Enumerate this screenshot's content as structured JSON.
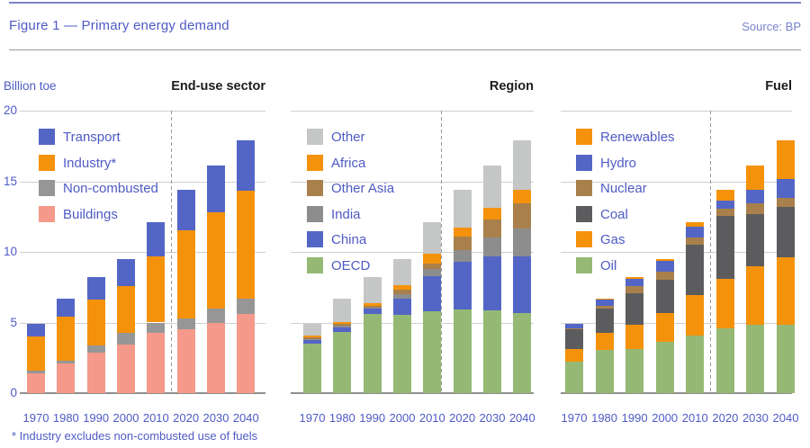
{
  "header": {
    "title": "Figure 1 — Primary energy demand",
    "source": "Source: BP"
  },
  "y_axis": {
    "unit_label": "Billion toe",
    "ticks": [
      0,
      5,
      10,
      15,
      20
    ],
    "max": 20
  },
  "years": [
    "1970",
    "1980",
    "1990",
    "2000",
    "2010",
    "2020",
    "2030",
    "2040"
  ],
  "footnote": "* Industry excludes non-combusted use of fuels",
  "colors": {
    "accent_text_blue": "#4e5bc4",
    "bar_blue": "#5366c6",
    "bar_orange": "#f5920b",
    "bar_salmon": "#f5998a",
    "bar_gray": "#969696",
    "bar_dark_gray": "#8d8d8d",
    "bar_light_gray": "#c5c6c6",
    "bar_brown": "#a9804c",
    "bar_coal": "#5c5c5f",
    "bar_green": "#95b975",
    "gridline": "#cfcfcf",
    "baseline": "#8e8e8e"
  },
  "chart_data": [
    {
      "type": "bar",
      "stacked": true,
      "title": "End-use sector",
      "ylabel": "Billion toe",
      "ylim": [
        0,
        20
      ],
      "grid": true,
      "legend_position": "upper-left-inside",
      "forecast_divider_between": [
        "2010",
        "2020"
      ],
      "categories": [
        "1970",
        "1980",
        "1990",
        "2000",
        "2010",
        "2020",
        "2030",
        "2040"
      ],
      "series": [
        {
          "name": "Transport",
          "color": "#5366c6",
          "values": [
            0.9,
            1.3,
            1.6,
            1.9,
            2.4,
            2.9,
            3.3,
            3.6
          ]
        },
        {
          "name": "Industry*",
          "color": "#f5920b",
          "values": [
            2.4,
            3.1,
            3.2,
            3.35,
            4.7,
            6.2,
            6.8,
            7.6
          ]
        },
        {
          "name": "Non-combusted",
          "color": "#969696",
          "values": [
            0.2,
            0.2,
            0.55,
            0.8,
            0.75,
            0.8,
            1.05,
            1.1
          ]
        },
        {
          "name": "Buildings",
          "color": "#f5998a",
          "values": [
            1.4,
            2.1,
            2.85,
            3.45,
            4.25,
            4.5,
            4.95,
            5.6
          ]
        }
      ]
    },
    {
      "type": "bar",
      "stacked": true,
      "title": "Region",
      "ylim": [
        0,
        20
      ],
      "grid": true,
      "legend_position": "upper-left-inside",
      "forecast_divider_between": [
        "2010",
        "2020"
      ],
      "categories": [
        "1970",
        "1980",
        "1990",
        "2000",
        "2010",
        "2020",
        "2030",
        "2040"
      ],
      "series": [
        {
          "name": "Other",
          "color": "#c5c6c6",
          "values": [
            0.85,
            1.65,
            1.8,
            1.85,
            2.25,
            2.65,
            3.0,
            3.5
          ]
        },
        {
          "name": "Africa",
          "color": "#f5920b",
          "values": [
            0.1,
            0.15,
            0.25,
            0.35,
            0.65,
            0.65,
            0.8,
            0.95
          ]
        },
        {
          "name": "Other Asia",
          "color": "#a9804c",
          "values": [
            0.1,
            0.15,
            0.1,
            0.3,
            0.4,
            0.95,
            1.3,
            1.8
          ]
        },
        {
          "name": "India",
          "color": "#8d8d8d",
          "values": [
            0.05,
            0.1,
            0.05,
            0.3,
            0.5,
            0.85,
            1.3,
            1.95
          ]
        },
        {
          "name": "China",
          "color": "#5366c6",
          "values": [
            0.3,
            0.35,
            0.4,
            1.15,
            2.5,
            3.4,
            3.85,
            4.0
          ]
        },
        {
          "name": "OECD",
          "color": "#95b975",
          "values": [
            3.5,
            4.3,
            5.6,
            5.55,
            5.8,
            5.9,
            5.85,
            5.7
          ]
        }
      ]
    },
    {
      "type": "bar",
      "stacked": true,
      "title": "Fuel",
      "ylim": [
        0,
        20
      ],
      "grid": true,
      "legend_position": "upper-left-inside",
      "forecast_divider_between": [
        "2010",
        "2020"
      ],
      "categories": [
        "1970",
        "1980",
        "1990",
        "2000",
        "2010",
        "2020",
        "2030",
        "2040"
      ],
      "series": [
        {
          "name": "Renewables",
          "color": "#f5920b",
          "values": [
            0.0,
            0.1,
            0.1,
            0.15,
            0.3,
            0.75,
            1.7,
            2.75
          ]
        },
        {
          "name": "Hydro",
          "color": "#5366c6",
          "values": [
            0.3,
            0.45,
            0.55,
            0.75,
            0.75,
            0.6,
            0.95,
            1.3
          ]
        },
        {
          "name": "Nuclear",
          "color": "#a9804c",
          "values": [
            0.05,
            0.15,
            0.45,
            0.55,
            0.55,
            0.5,
            0.75,
            0.65
          ]
        },
        {
          "name": "Coal",
          "color": "#5c5c5f",
          "values": [
            1.45,
            1.75,
            2.25,
            2.35,
            3.55,
            4.45,
            3.7,
            3.6
          ]
        },
        {
          "name": "Gas",
          "color": "#f5920b",
          "values": [
            0.85,
            1.2,
            1.7,
            2.05,
            2.85,
            3.5,
            4.15,
            4.75
          ]
        },
        {
          "name": "Oil",
          "color": "#95b975",
          "values": [
            2.25,
            3.05,
            3.15,
            3.65,
            4.1,
            4.6,
            4.85,
            4.85
          ]
        }
      ]
    }
  ]
}
